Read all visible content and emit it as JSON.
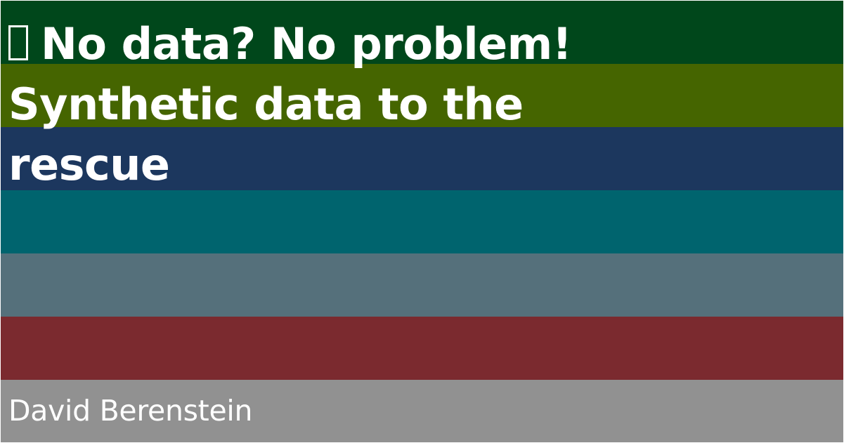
{
  "title": {
    "icon": "missing-glyph-icon",
    "text": "No data? No problem! Synthetic data to the rescue"
  },
  "author": {
    "name": "David Berenstein"
  },
  "stripes": {
    "colors": [
      "#00471b",
      "#456500",
      "#1c375e",
      "#00646e",
      "#55707b",
      "#7b2a2f",
      "#919191"
    ]
  }
}
